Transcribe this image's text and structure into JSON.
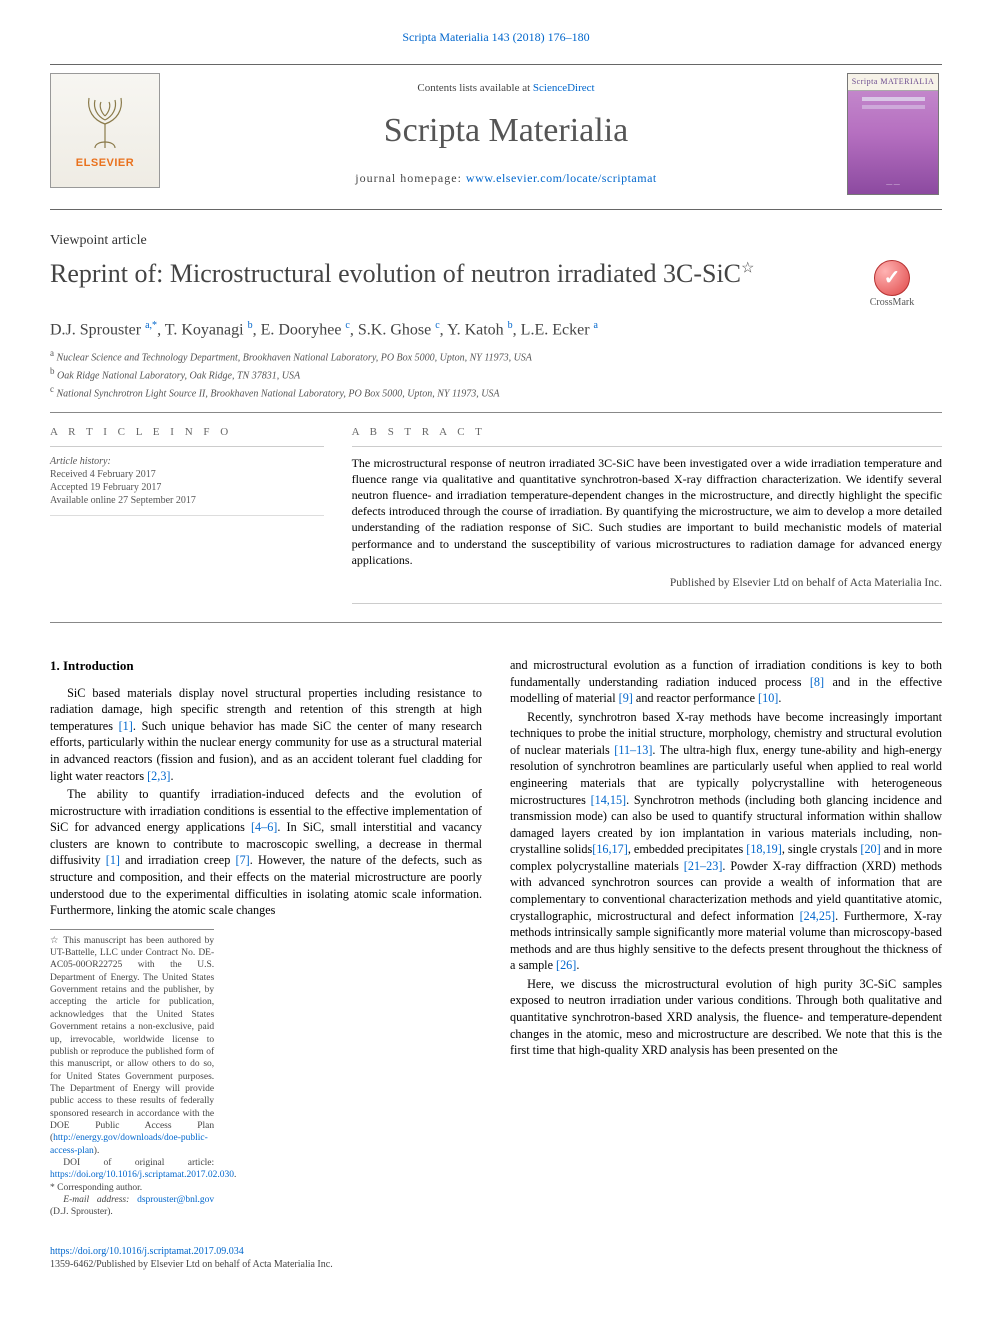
{
  "colors": {
    "link": "#0066cc",
    "text": "#000000",
    "muted": "#555555",
    "rule": "#cccccc",
    "cover_gradient_top": "#c88fcf",
    "cover_gradient_bot": "#8c4aa0",
    "crossmark_bg": "#e04848"
  },
  "typography": {
    "body_family": "Times New Roman, Georgia, serif",
    "body_size_pt": 9.5,
    "title_size_pt": 20,
    "journal_title_size_pt": 26
  },
  "header": {
    "citation": "Scripta Materialia 143 (2018) 176–180",
    "contents_line_prefix": "Contents lists available at ",
    "contents_line_link": "ScienceDirect",
    "journal_title": "Scripta Materialia",
    "homepage_prefix": "journal homepage: ",
    "homepage_link": "www.elsevier.com/locate/scriptamat",
    "publisher_logo": "ELSEVIER",
    "cover_label": "Scripta MATERIALIA"
  },
  "article": {
    "section_label": "Viewpoint article",
    "title": "Reprint of: Microstructural evolution of neutron irradiated 3C-SiC",
    "title_star": "☆",
    "crossmark": "CrossMark",
    "authors_html": "D.J. Sprouster <sup>a,*</sup>, T. Koyanagi <sup>b</sup>, E. Dooryhee <sup>c</sup>, S.K. Ghose <sup>c</sup>, Y. Katoh <sup>b</sup>, L.E. Ecker <sup>a</sup>",
    "affiliations": [
      {
        "key": "a",
        "text": "Nuclear Science and Technology Department, Brookhaven National Laboratory, PO Box 5000, Upton, NY 11973, USA"
      },
      {
        "key": "b",
        "text": "Oak Ridge National Laboratory, Oak Ridge, TN 37831, USA"
      },
      {
        "key": "c",
        "text": "National Synchrotron Light Source II, Brookhaven National Laboratory, PO Box 5000, Upton, NY 11973, USA"
      }
    ],
    "info_heading": "a r t i c l e   i n f o",
    "abstract_heading": "a b s t r a c t",
    "history_label": "Article history:",
    "history": [
      "Received 4 February 2017",
      "Accepted 19 February 2017",
      "Available online 27 September 2017"
    ],
    "abstract": "The microstructural response of neutron irradiated 3C-SiC have been investigated over a wide irradiation temperature and fluence range via qualitative and quantitative synchrotron-based X-ray diffraction characterization. We identify several neutron fluence- and irradiation temperature-dependent changes in the microstructure, and directly highlight the specific defects introduced through the course of irradiation. By quantifying the microstructure, we aim to develop a more detailed understanding of the radiation response of SiC. Such studies are important to build mechanistic models of material performance and to understand the susceptibility of various microstructures to radiation damage for advanced energy applications.",
    "pub_line": "Published by Elsevier Ltd on behalf of Acta Materialia Inc.",
    "intro_heading": "1. Introduction",
    "intro_p1": "SiC based materials display novel structural properties including resistance to radiation damage, high specific strength and retention of this strength at high temperatures [1]. Such unique behavior has made SiC the center of many research efforts, particularly within the nuclear energy community for use as a structural material in advanced reactors (fission and fusion), and as an accident tolerant fuel cladding for light water reactors [2,3].",
    "intro_p2": "The ability to quantify irradiation-induced defects and the evolution of microstructure with irradiation conditions is essential to the effective implementation of SiC for advanced energy applications [4–6]. In SiC, small interstitial and vacancy clusters are known to contribute to macroscopic swelling, a decrease in thermal diffusivity [1] and irradiation creep [7]. However, the nature of the defects, such as structure and composition, and their effects on the material microstructure are poorly understood due to the experimental difficulties in isolating atomic scale information. Furthermore, linking the atomic scale changes",
    "intro_p3": "and microstructural evolution as a function of irradiation conditions is key to both fundamentally understanding radiation induced process [8] and in the effective modelling of material [9] and reactor performance [10].",
    "intro_p4": "Recently, synchrotron based X-ray methods have become increasingly important techniques to probe the initial structure, morphology, chemistry and structural evolution of nuclear materials [11–13]. The ultra-high flux, energy tune-ability and high-energy resolution of synchrotron beamlines are particularly useful when applied to real world engineering materials that are typically polycrystalline with heterogeneous microstructures [14,15]. Synchrotron methods (including both glancing incidence and transmission mode) can also be used to quantify structural information within shallow damaged layers created by ion implantation in various materials including, non-crystalline solids[16,17], embedded precipitates [18,19], single crystals [20] and in more complex polycrystalline materials [21–23]. Powder X-ray diffraction (XRD) methods with advanced synchrotron sources can provide a wealth of information that are complementary to conventional characterization methods and yield quantitative atomic, crystallographic, microstructural and defect information [24,25]. Furthermore, X-ray methods intrinsically sample significantly more material volume than microscopy-based methods and are thus highly sensitive to the defects present throughout the thickness of a sample [26].",
    "intro_p5": "Here, we discuss the microstructural evolution of high purity 3C-SiC samples exposed to neutron irradiation under various conditions. Through both qualitative and quantitative synchrotron-based XRD analysis, the fluence- and temperature-dependent changes in the atomic, meso and microstructure are described. We note that this is the first time that high-quality XRD analysis has been presented on the"
  },
  "footnotes": {
    "star": "☆  This manuscript has been authored by UT-Battelle, LLC under Contract No. DE-AC05-00OR22725 with the U.S. Department of Energy. The United States Government retains and the publisher, by accepting the article for publication, acknowledges that the United States Government retains a non-exclusive, paid up, irrevocable, worldwide license to publish or reproduce the published form of this manuscript, or allow others to do so, for United States Government purposes. The Department of Energy will provide public access to these results of federally sponsored research in accordance with the DOE Public Access Plan (http://energy.gov/downloads/doe-public-access-plan).",
    "doi_line_prefix": "DOI of original article: ",
    "doi_link": "https://doi.org/10.1016/j.scriptamat.2017.02.030",
    "doi_suffix": ".",
    "corr": "*  Corresponding author.",
    "email_prefix": "E-mail address: ",
    "email": "dsprouster@bnl.gov",
    "email_name": " (D.J. Sprouster)."
  },
  "footer": {
    "doi": "https://doi.org/10.1016/j.scriptamat.2017.09.034",
    "rights": "1359-6462/Published by Elsevier Ltd on behalf of Acta Materialia Inc."
  },
  "citation_refs": [
    "[1]",
    "[2,3]",
    "[4–6]",
    "[7]",
    "[8]",
    "[9]",
    "[10]",
    "[11–13]",
    "[14,15]",
    "[16,17]",
    "[18,19]",
    "[20]",
    "[21–23]",
    "[24,25]",
    "[26]"
  ]
}
